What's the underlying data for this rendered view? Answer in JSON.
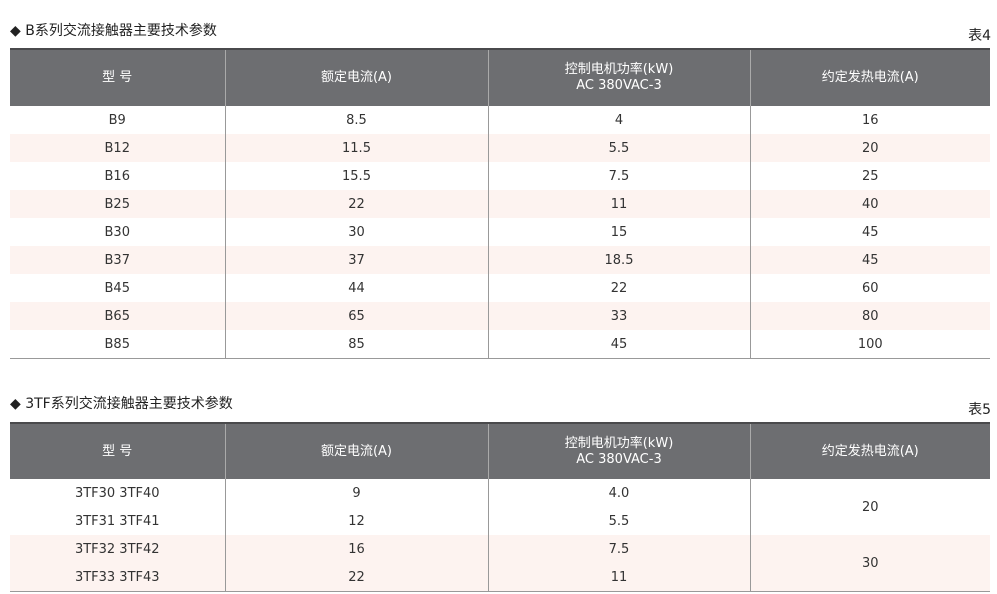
{
  "table4": {
    "title": "◆ B系列交流接触器主要技术参数",
    "tag": "表4",
    "headers": [
      "型  号",
      "额定电流(A)",
      "控制电机功率(kW)",
      "约定发热电流(A)"
    ],
    "header_sub": "AC 380VAC-3",
    "rows": [
      [
        "B9",
        "8.5",
        "4",
        "16"
      ],
      [
        "B12",
        "11.5",
        "5.5",
        "20"
      ],
      [
        "B16",
        "15.5",
        "7.5",
        "25"
      ],
      [
        "B25",
        "22",
        "11",
        "40"
      ],
      [
        "B30",
        "30",
        "15",
        "45"
      ],
      [
        "B37",
        "37",
        "18.5",
        "45"
      ],
      [
        "B45",
        "44",
        "22",
        "60"
      ],
      [
        "B65",
        "65",
        "33",
        "80"
      ],
      [
        "B85",
        "85",
        "45",
        "100"
      ]
    ]
  },
  "table5": {
    "title": "◆ 3TF系列交流接触器主要技术参数",
    "tag": "表5",
    "headers": [
      "型  号",
      "额定电流(A)",
      "控制电机功率(kW)",
      "约定发热电流(A)"
    ],
    "header_sub": "AC 380VAC-3",
    "rows": [
      [
        "3TF30  3TF40",
        "9",
        "4.0"
      ],
      [
        "3TF31  3TF41",
        "12",
        "5.5"
      ],
      [
        "3TF32  3TF42",
        "16",
        "7.5"
      ],
      [
        "3TF33  3TF43",
        "22",
        "11"
      ]
    ],
    "merged_heat_current": [
      "20",
      "30"
    ]
  },
  "colors": {
    "header_bg": "#6d6e71",
    "stripe": "#fdf3f0"
  }
}
